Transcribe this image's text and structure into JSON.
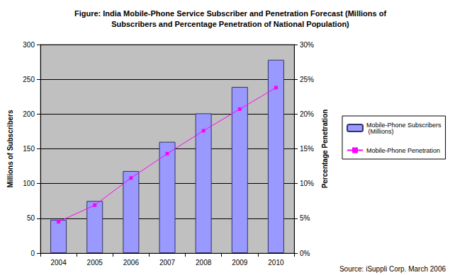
{
  "chart_data": {
    "type": "bar",
    "title": "Figure: India Mobile-Phone Service Subscriber and Penetration Forecast (Millions of\nSubscribers and Percentage Penetration of National Population)",
    "y_label": "Millions of Subscribers",
    "y2_label": "Percentage Penetration",
    "annotations": [
      "Source: iSuppli Corp. March 2006"
    ],
    "categories": [
      "2004",
      "2005",
      "2006",
      "2007",
      "2008",
      "2009",
      "2010"
    ],
    "series": [
      {
        "name": "Mobile-Phone Subscribers (Millions)",
        "type": "bar",
        "color": "#9999ff",
        "values": [
          48,
          75,
          118,
          160,
          201,
          239,
          278
        ]
      },
      {
        "name": "Mobile-Phone Penetration",
        "type": "line",
        "color": "#ff00ff",
        "marker": "square",
        "axis": "y2",
        "values": [
          4.5,
          6.9,
          10.8,
          14.3,
          17.6,
          20.7,
          23.8
        ]
      }
    ],
    "ylim": [
      0,
      300
    ],
    "yticks": [
      0,
      50,
      100,
      150,
      200,
      250,
      300
    ],
    "y2lim": [
      0,
      30
    ],
    "y2ticks": [
      {
        "value": 0,
        "label": "0%"
      },
      {
        "value": 5,
        "label": "5%"
      },
      {
        "value": 10,
        "label": "10%"
      },
      {
        "value": 15,
        "label": "15%"
      },
      {
        "value": 20,
        "label": "20%"
      },
      {
        "value": 25,
        "label": "25%"
      },
      {
        "value": 30,
        "label": "30%"
      }
    ],
    "grid": true,
    "legend": "right"
  }
}
